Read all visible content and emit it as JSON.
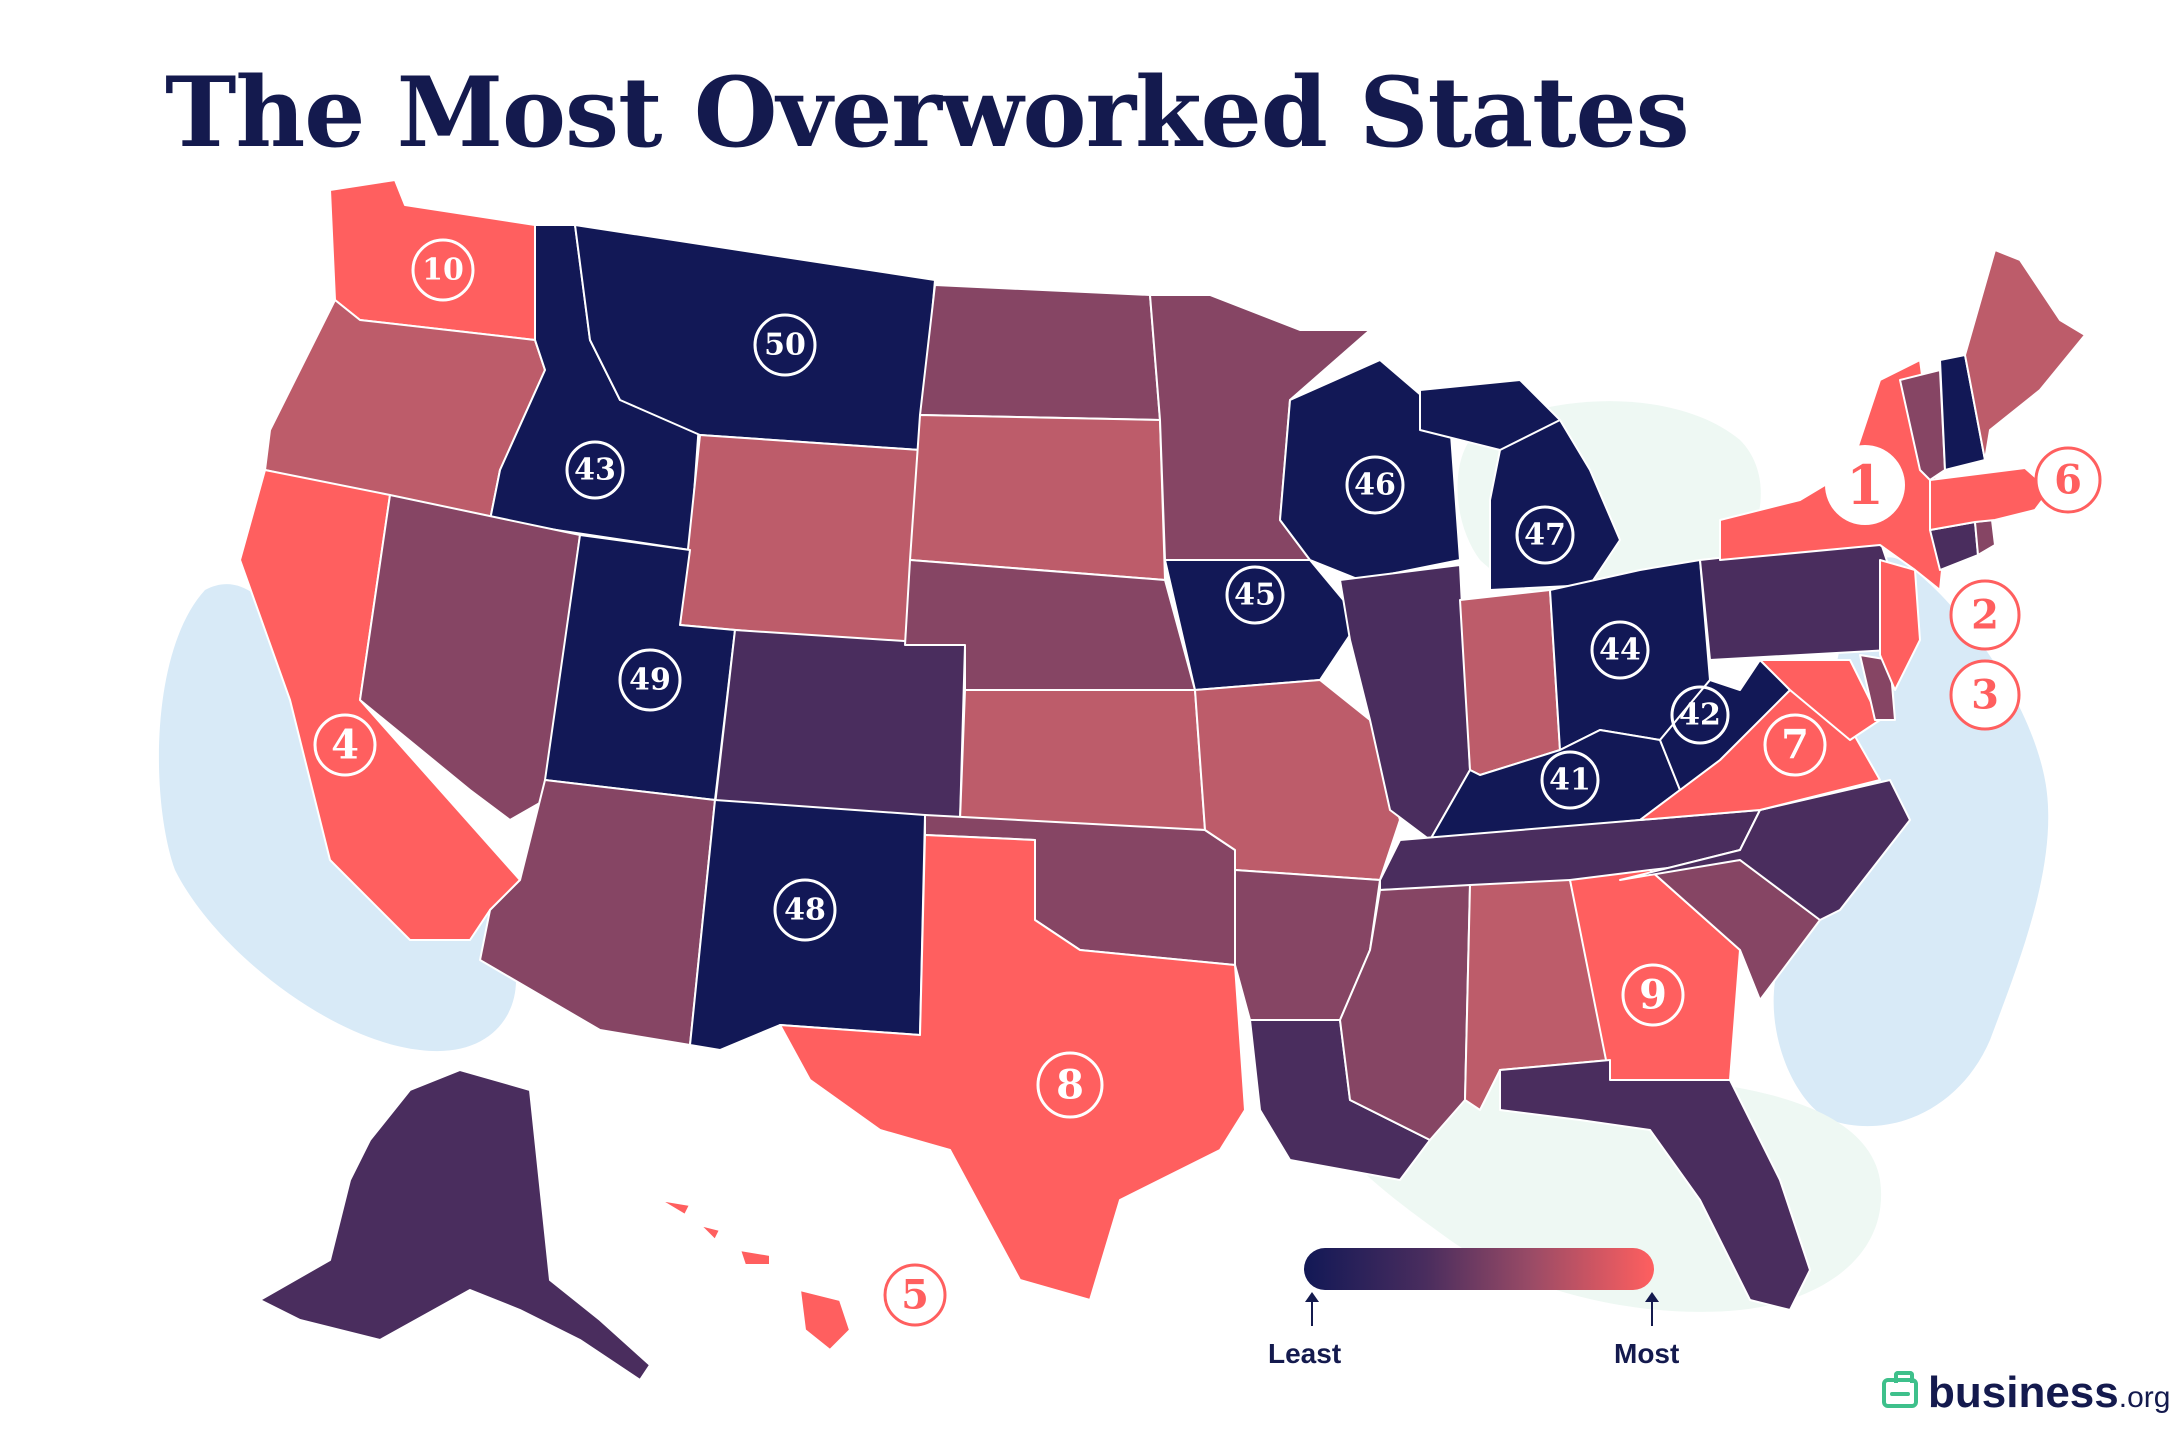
{
  "title": "The Most Overworked States",
  "colors": {
    "least": "#121856",
    "low": "#4a2d5e",
    "mid": "#864564",
    "high": "#bd5c6a",
    "most": "#ff5f5f",
    "title": "#141a4e",
    "ocean_blue": "#d8eaf7",
    "ocean_green": "#eef8f3",
    "brand_green": "#3ec08b"
  },
  "legend": {
    "least_label": "Least",
    "most_label": "Most"
  },
  "brand": {
    "name": "business",
    "tld": ".org"
  },
  "ranked_labels": [
    {
      "rank": "1",
      "state": "New York"
    },
    {
      "rank": "2",
      "state": "New Jersey"
    },
    {
      "rank": "3",
      "state": "Maryland"
    },
    {
      "rank": "4",
      "state": "California"
    },
    {
      "rank": "5",
      "state": "Hawaii"
    },
    {
      "rank": "6",
      "state": "Massachusetts"
    },
    {
      "rank": "7",
      "state": "Virginia"
    },
    {
      "rank": "8",
      "state": "Texas"
    },
    {
      "rank": "9",
      "state": "Georgia"
    },
    {
      "rank": "10",
      "state": "Washington"
    },
    {
      "rank": "41",
      "state": "Kentucky"
    },
    {
      "rank": "42",
      "state": "West Virginia"
    },
    {
      "rank": "43",
      "state": "Idaho"
    },
    {
      "rank": "44",
      "state": "Ohio"
    },
    {
      "rank": "45",
      "state": "Iowa"
    },
    {
      "rank": "46",
      "state": "Wisconsin"
    },
    {
      "rank": "47",
      "state": "Michigan"
    },
    {
      "rank": "48",
      "state": "New Mexico"
    },
    {
      "rank": "49",
      "state": "Utah"
    },
    {
      "rank": "50",
      "state": "Montana"
    }
  ],
  "state_tiers": {
    "WA": "most",
    "CA": "most",
    "TX": "most",
    "GA": "most",
    "VA": "most",
    "NY": "most",
    "NJ": "most",
    "MD": "most",
    "MA": "most",
    "HI": "most",
    "OR": "high",
    "WY": "high",
    "SD": "high",
    "KS": "high",
    "MO": "high",
    "IN": "high",
    "AL": "high",
    "ME": "high",
    "ND": "mid",
    "MN": "mid",
    "NE": "mid",
    "NV": "mid",
    "AZ": "mid",
    "OK": "mid",
    "AR": "mid",
    "MS": "mid",
    "SC": "mid",
    "VT": "mid",
    "RI": "mid",
    "DE": "mid",
    "CO": "low",
    "IL": "low",
    "TN": "low",
    "NC": "low",
    "PA": "low",
    "LA": "low",
    "FL": "low",
    "AK": "low",
    "CT": "low",
    "MT": "least",
    "ID": "least",
    "UT": "least",
    "NM": "least",
    "WI": "least",
    "MI": "least",
    "IA": "least",
    "OH": "least",
    "KY": "least",
    "WV": "least",
    "NH": "least"
  }
}
